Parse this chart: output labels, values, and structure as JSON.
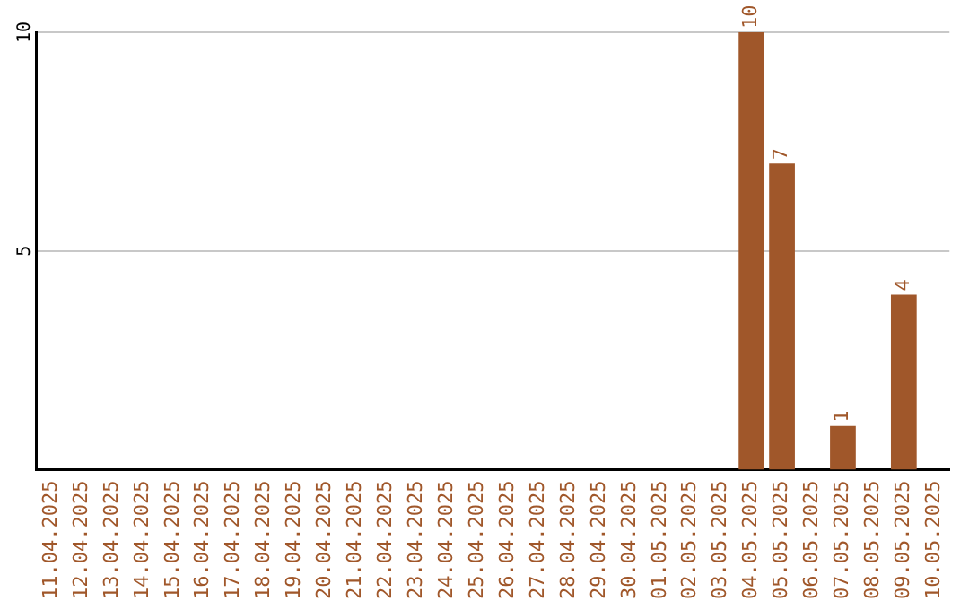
{
  "chart_data": {
    "type": "bar",
    "categories": [
      "11.04.2025",
      "12.04.2025",
      "13.04.2025",
      "14.04.2025",
      "15.04.2025",
      "16.04.2025",
      "17.04.2025",
      "18.04.2025",
      "19.04.2025",
      "20.04.2025",
      "21.04.2025",
      "22.04.2025",
      "23.04.2025",
      "24.04.2025",
      "25.04.2025",
      "26.04.2025",
      "27.04.2025",
      "28.04.2025",
      "29.04.2025",
      "30.04.2025",
      "01.05.2025",
      "02.05.2025",
      "03.05.2025",
      "04.05.2025",
      "05.05.2025",
      "06.05.2025",
      "07.05.2025",
      "08.05.2025",
      "09.05.2025",
      "10.05.2025"
    ],
    "values": [
      0,
      0,
      0,
      0,
      0,
      0,
      0,
      0,
      0,
      0,
      0,
      0,
      0,
      0,
      0,
      0,
      0,
      0,
      0,
      0,
      0,
      0,
      0,
      10,
      7,
      0,
      1,
      0,
      4,
      0
    ],
    "value_labels": [
      null,
      null,
      null,
      null,
      null,
      null,
      null,
      null,
      null,
      null,
      null,
      null,
      null,
      null,
      null,
      null,
      null,
      null,
      null,
      null,
      null,
      null,
      null,
      "10",
      "7",
      null,
      "1",
      null,
      "4",
      null
    ],
    "color": "#a0572a",
    "ylim": [
      0,
      10
    ],
    "yticks": [
      5,
      10
    ],
    "grid": "y",
    "legend": false
  }
}
